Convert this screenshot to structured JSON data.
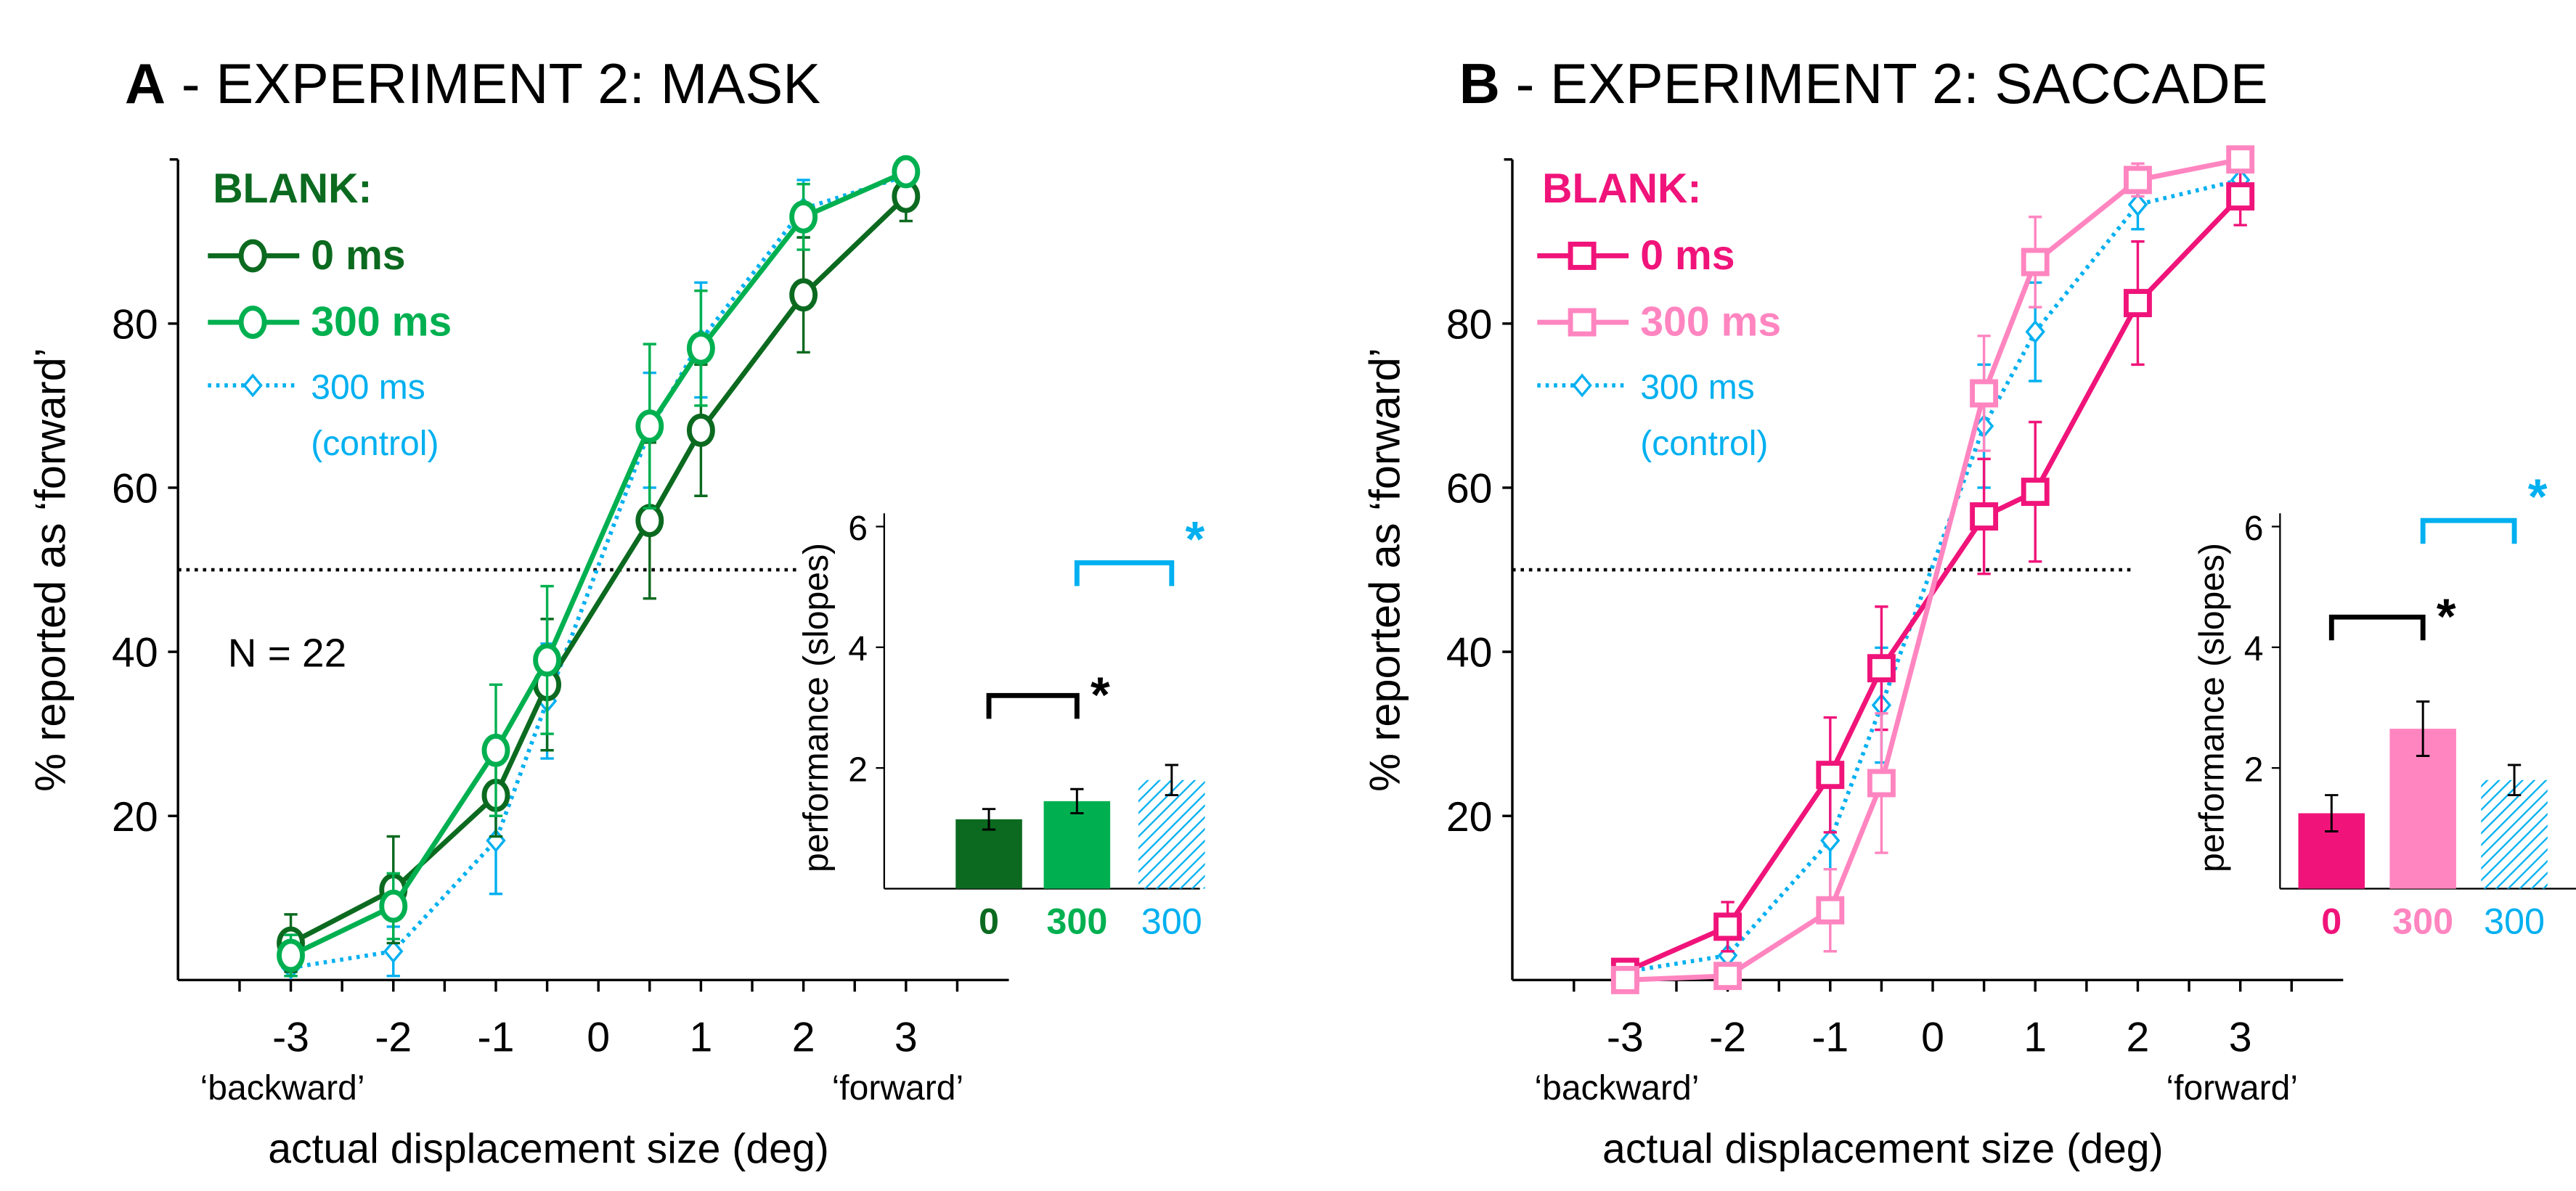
{
  "chart_data": [
    {
      "type": "line",
      "panel_letter": "A",
      "title": " - EXPERIMENT 2: MASK",
      "xlabel": "actual displacement size (deg)",
      "ylabel": "% reported as ‘forward’",
      "x": [
        -3,
        -2,
        -1,
        -0.5,
        0.5,
        1,
        2,
        3
      ],
      "xticks": [
        "-3",
        "-2",
        "-1",
        "0",
        "1",
        "2",
        "3"
      ],
      "xtick_values": [
        -3,
        -2,
        -1,
        0,
        1,
        2,
        3
      ],
      "yticks": [
        "20",
        "40",
        "60",
        "80"
      ],
      "ytick_values": [
        20,
        40,
        60,
        80
      ],
      "ylim": [
        0,
        100
      ],
      "reference_line": 50,
      "x_end_labels": {
        "left": "‘backward’",
        "right": "‘forward’"
      },
      "legend_title": "BLANK:",
      "annotation": "N = 22",
      "series": [
        {
          "name": "0 ms",
          "color": "#0b6a1f",
          "marker": "circle",
          "style": "solid",
          "values": [
            4.5,
            11,
            22.5,
            36,
            56,
            67,
            83.5,
            95.5
          ],
          "errors": [
            3.5,
            6.5,
            5,
            8,
            9.5,
            8,
            7,
            3
          ]
        },
        {
          "name": "300 ms",
          "color": "#00b050",
          "marker": "circle",
          "style": "solid",
          "values": [
            3,
            9,
            28,
            39,
            67.5,
            77,
            93,
            98.5
          ],
          "errors": [
            2.5,
            4,
            8,
            9,
            10,
            7,
            4,
            1
          ]
        },
        {
          "name": "300 ms",
          "name2": "(control)",
          "color": "#00b0f0",
          "marker": "diamond",
          "style": "dotted",
          "values": [
            1.5,
            3.5,
            17,
            34,
            67,
            78,
            94,
            98
          ],
          "errors": [
            1,
            3,
            6.5,
            7,
            7,
            7,
            3.5,
            1.5
          ]
        }
      ],
      "inset": {
        "ylabel": "performance (slopes)",
        "yticks": [
          "2",
          "4",
          "6"
        ],
        "ytick_values": [
          2,
          4,
          6
        ],
        "ylim": [
          0,
          6
        ],
        "categories": [
          "0",
          "300",
          "300"
        ],
        "values": [
          1.15,
          1.45,
          1.8
        ],
        "errors": [
          0.17,
          0.2,
          0.25
        ],
        "colors": [
          "#0b6a1f",
          "#00b050",
          "#00b0f0"
        ],
        "significance": [
          {
            "from": 0,
            "to": 1,
            "label": "*",
            "color": "#000000",
            "level": 3.2
          },
          {
            "from": 1,
            "to": 2,
            "label": "*",
            "color": "#00b0f0",
            "level": 5.4
          }
        ]
      }
    },
    {
      "type": "line",
      "panel_letter": "B",
      "title": " - EXPERIMENT 2: SACCADE",
      "xlabel": "actual displacement size (deg)",
      "ylabel": "% reported as ‘forward’",
      "x": [
        -3,
        -2,
        -1,
        -0.5,
        0.5,
        1,
        2,
        3
      ],
      "xticks": [
        "-3",
        "-2",
        "-1",
        "0",
        "1",
        "2",
        "3"
      ],
      "xtick_values": [
        -3,
        -2,
        -1,
        0,
        1,
        2,
        3
      ],
      "yticks": [
        "20",
        "40",
        "60",
        "80"
      ],
      "ytick_values": [
        20,
        40,
        60,
        80
      ],
      "ylim": [
        0,
        100
      ],
      "reference_line": 50,
      "x_end_labels": {
        "left": "‘backward’",
        "right": "‘forward’"
      },
      "legend_title": "BLANK:",
      "annotation": "",
      "series": [
        {
          "name": "0 ms",
          "color": "#f0147a",
          "marker": "square",
          "style": "solid",
          "values": [
            1,
            6.5,
            25,
            38,
            56.5,
            59.5,
            82.5,
            95.5
          ],
          "errors": [
            1,
            3,
            7,
            7.5,
            7,
            8.5,
            7.5,
            3.5
          ]
        },
        {
          "name": "300 ms",
          "color": "#ff85c0",
          "marker": "square",
          "style": "solid",
          "values": [
            0,
            0.5,
            8.5,
            24,
            71.5,
            87.5,
            97.5,
            100
          ],
          "errors": [
            0.5,
            1,
            5,
            8.5,
            7,
            5.5,
            2,
            0.5
          ]
        },
        {
          "name": "300 ms",
          "name2": "(control)",
          "color": "#00b0f0",
          "marker": "diamond",
          "style": "dotted",
          "values": [
            1,
            3,
            17,
            33.5,
            67.5,
            79,
            94.5,
            97.5
          ],
          "errors": [
            1,
            2.5,
            7,
            7,
            7.5,
            6,
            3,
            2
          ]
        }
      ],
      "inset": {
        "ylabel": "performance (slopes)",
        "yticks": [
          "2",
          "4",
          "6"
        ],
        "ytick_values": [
          2,
          4,
          6
        ],
        "ylim": [
          0,
          6
        ],
        "categories": [
          "0",
          "300",
          "300"
        ],
        "values": [
          1.25,
          2.65,
          1.8
        ],
        "errors": [
          0.3,
          0.45,
          0.25
        ],
        "colors": [
          "#f0147a",
          "#ff85c0",
          "#00b0f0"
        ],
        "significance": [
          {
            "from": 0,
            "to": 1,
            "label": "*",
            "color": "#000000",
            "level": 4.5
          },
          {
            "from": 1,
            "to": 2,
            "label": "*",
            "color": "#00b0f0",
            "level": 6.1
          }
        ]
      }
    }
  ]
}
